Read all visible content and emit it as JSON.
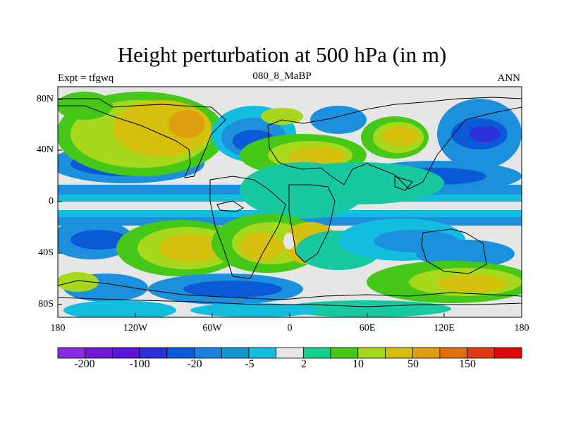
{
  "title": "Height perturbation at 500 hPa (in m)",
  "left_string": "Expt = tfgwq",
  "center_string": "080_8_MaBP",
  "right_string": "ANN",
  "lat_ticks": [
    "80N",
    "40N",
    "0",
    "40S",
    "80S"
  ],
  "lon_ticks": [
    "180",
    "120W",
    "60W",
    "0",
    "60E",
    "120E",
    "180"
  ],
  "colorbar": {
    "colors": [
      "#8a2be2",
      "#7318d9",
      "#5a14d6",
      "#2a32d8",
      "#0a5ad8",
      "#1c82dc",
      "#1196d2",
      "#13bde0",
      "#e6e6e6",
      "#13d08c",
      "#45c818",
      "#a8d81c",
      "#d6c00e",
      "#dea010",
      "#e0700e",
      "#e03a10",
      "#e00808"
    ],
    "labels": [
      "-200",
      "-100",
      "-20",
      "-5",
      "2",
      "10",
      "50",
      "150"
    ]
  },
  "palette": {
    "neutral": "#e6e6e6",
    "teal": "#18c8a0",
    "cyan": "#13bde0",
    "skyblue": "#1c90dc",
    "blue": "#0a5ad8",
    "deepblue": "#2a32d8",
    "green": "#45c818",
    "yellowgreen": "#a8d81c",
    "yellow": "#d6c00e",
    "orange": "#dea010"
  }
}
